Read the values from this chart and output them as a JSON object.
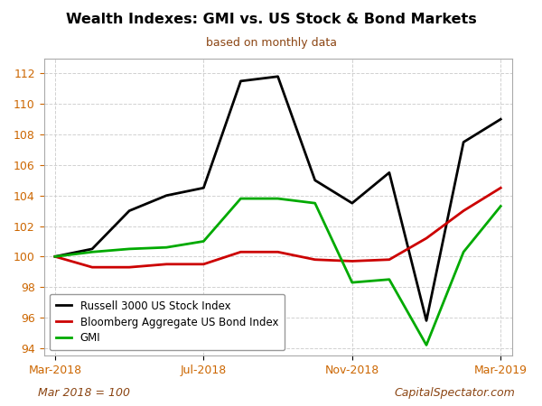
{
  "title": "Wealth Indexes: GMI vs. US Stock & Bond Markets",
  "subtitle": "based on monthly data",
  "footnote_left": "Mar 2018 = 100",
  "footnote_right": "CapitalSpectator.com",
  "title_color": "#000000",
  "subtitle_color": "#8B4513",
  "footnote_color": "#8B4513",
  "background_color": "#ffffff",
  "plot_bg_color": "#ffffff",
  "grid_color": "#cccccc",
  "ylim": [
    93.5,
    113
  ],
  "yticks": [
    94,
    96,
    98,
    100,
    102,
    104,
    106,
    108,
    110,
    112
  ],
  "xtick_labels": [
    "Mar-2018",
    "Jul-2018",
    "Nov-2018",
    "Mar-2019"
  ],
  "months": [
    0,
    1,
    2,
    3,
    4,
    5,
    6,
    7,
    8,
    9,
    10,
    11,
    12
  ],
  "russell": [
    100.0,
    100.5,
    103.0,
    104.0,
    104.5,
    111.5,
    111.8,
    105.0,
    103.5,
    105.5,
    95.8,
    107.5,
    109.0
  ],
  "bond": [
    100.0,
    99.3,
    99.3,
    99.5,
    99.5,
    100.3,
    100.3,
    99.8,
    99.7,
    99.8,
    101.2,
    103.0,
    104.5
  ],
  "gmi": [
    100.0,
    100.3,
    100.5,
    100.6,
    101.0,
    103.8,
    103.8,
    103.5,
    98.3,
    98.5,
    94.2,
    100.3,
    103.3
  ],
  "russell_color": "#000000",
  "bond_color": "#cc0000",
  "gmi_color": "#00aa00",
  "linewidth": 2.0,
  "legend_labels": [
    "Russell 3000 US Stock Index",
    "Bloomberg Aggregate US Bond Index",
    "GMI"
  ]
}
